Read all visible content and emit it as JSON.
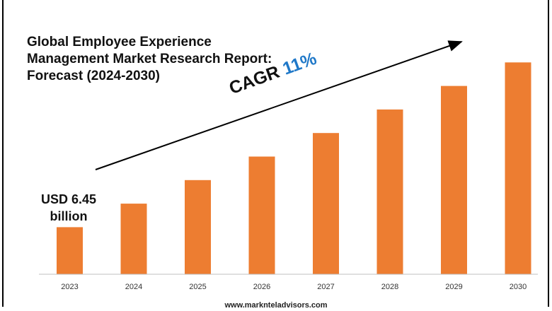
{
  "chart_data": {
    "type": "bar",
    "title_lines": [
      "Global Employee Experience",
      "Management Market Research Report:",
      "Forecast (2024-2030)"
    ],
    "categories": [
      "2023",
      "2024",
      "2025",
      "2026",
      "2027",
      "2028",
      "2029",
      "2030"
    ],
    "values": [
      1.0,
      1.5,
      2.0,
      2.5,
      3.0,
      3.5,
      4.0,
      4.5
    ],
    "ylim": [
      0,
      5
    ],
    "bar_color": "#ed7d31",
    "annotations": {
      "cagr_label": "CAGR",
      "cagr_value": "11%",
      "cagr_color": "#1f78c8",
      "start_value_line1": "USD 6.45",
      "start_value_line2": "billion"
    },
    "xlabel": "",
    "ylabel": "",
    "grid": false
  },
  "footer": {
    "url": "www.marknteladvisors.com"
  }
}
